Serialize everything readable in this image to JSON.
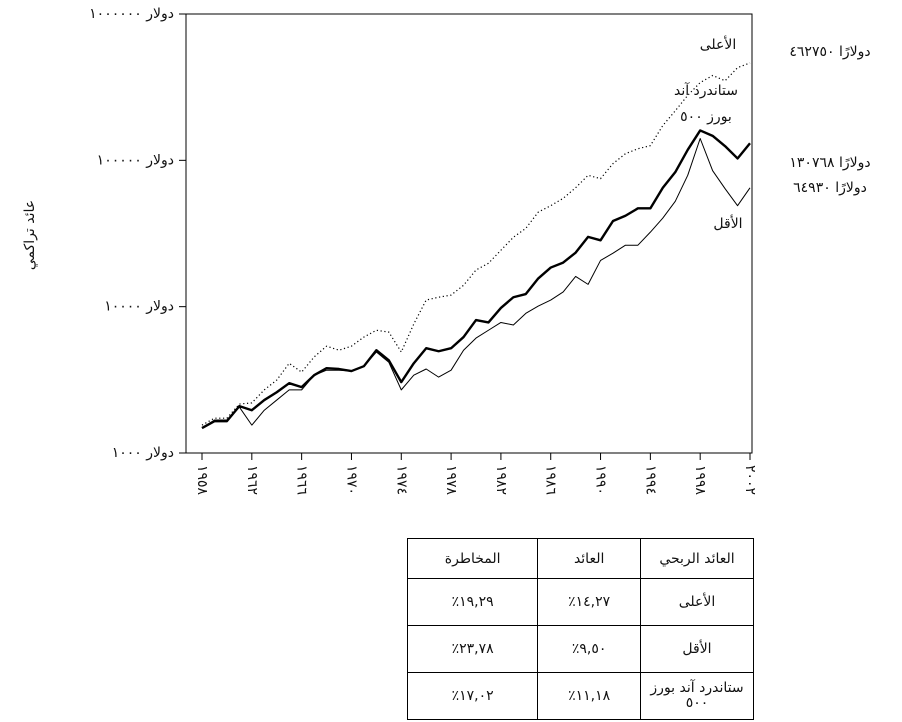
{
  "chart_data": {
    "type": "line",
    "y_label": "عائد تراكمي",
    "yscale": "log",
    "ylim": [
      1000,
      1000000
    ],
    "yticks": [
      {
        "value": 1000,
        "label": "دولار ١٠٠٠"
      },
      {
        "value": 10000,
        "label": "دولار ١٠٠٠٠"
      },
      {
        "value": 100000,
        "label": "دولار ١٠٠٠٠٠"
      },
      {
        "value": 1000000,
        "label": "دولار ١٠٠٠٠٠٠"
      }
    ],
    "xlim": [
      1958,
      2002
    ],
    "xticks": [
      {
        "value": 1958,
        "label": "١٩٥٨"
      },
      {
        "value": 1962,
        "label": "١٩٦٢"
      },
      {
        "value": 1966,
        "label": "١٩٦٦"
      },
      {
        "value": 1970,
        "label": "١٩٧٠"
      },
      {
        "value": 1974,
        "label": "١٩٧٤"
      },
      {
        "value": 1978,
        "label": "١٩٧٨"
      },
      {
        "value": 1982,
        "label": "١٩٨٢"
      },
      {
        "value": 1986,
        "label": "١٩٨٦"
      },
      {
        "value": 1990,
        "label": "١٩٩٠"
      },
      {
        "value": 1994,
        "label": "١٩٩٤"
      },
      {
        "value": 1998,
        "label": "١٩٩٨"
      },
      {
        "value": 2002,
        "label": "٢٠٠٢"
      }
    ],
    "x": [
      1958,
      1959,
      1960,
      1961,
      1962,
      1963,
      1964,
      1965,
      1966,
      1967,
      1968,
      1969,
      1970,
      1971,
      1972,
      1973,
      1974,
      1975,
      1976,
      1977,
      1978,
      1979,
      1980,
      1981,
      1982,
      1983,
      1984,
      1985,
      1986,
      1987,
      1988,
      1989,
      1990,
      1991,
      1992,
      1993,
      1994,
      1995,
      1996,
      1997,
      1998,
      1999,
      2000,
      2001,
      2002
    ],
    "series": [
      {
        "name": "الأعلى",
        "color": "#000000",
        "style": "dotted",
        "width": 1.2,
        "values": [
          1550,
          1730,
          1730,
          2160,
          2200,
          2700,
          3150,
          4100,
          3570,
          4530,
          5370,
          5040,
          5370,
          6200,
          6900,
          6700,
          4900,
          7600,
          11100,
          11600,
          12000,
          14000,
          17800,
          19800,
          24300,
          29800,
          34300,
          44300,
          49000,
          55000,
          65000,
          79000,
          75000,
          95000,
          111000,
          120000,
          126000,
          173000,
          218000,
          278000,
          340000,
          380000,
          350000,
          430000,
          462750
        ],
        "value_labels": [
          null,
          null,
          null,
          null,
          null,
          null,
          null,
          null,
          null,
          null,
          null,
          null,
          null,
          null,
          null,
          null,
          null,
          null,
          null,
          null,
          null,
          null,
          null,
          null,
          null,
          null,
          null,
          null,
          null,
          null,
          null,
          null,
          null,
          null,
          null,
          null,
          null,
          null,
          null,
          null,
          null,
          null,
          null,
          null,
          "دولارًا ٤٦٢٧٥٠"
        ]
      },
      {
        "name": "ستاندرد آند بورز ٥٠٠",
        "color": "#000000",
        "style": "solid",
        "width": 2.4,
        "values": [
          1480,
          1650,
          1650,
          2090,
          1960,
          2300,
          2600,
          3000,
          2820,
          3400,
          3800,
          3750,
          3630,
          3920,
          5040,
          4300,
          3050,
          4100,
          5200,
          4960,
          5200,
          6200,
          8100,
          7800,
          9800,
          11600,
          12200,
          15600,
          18500,
          20000,
          23400,
          30000,
          28400,
          38500,
          41800,
          47000,
          47000,
          65000,
          83000,
          118000,
          160000,
          147000,
          125000,
          103000,
          130768
        ],
        "value_labels": [
          null,
          null,
          null,
          null,
          null,
          null,
          null,
          null,
          null,
          null,
          null,
          null,
          null,
          null,
          null,
          null,
          null,
          null,
          null,
          null,
          null,
          null,
          null,
          null,
          null,
          null,
          null,
          null,
          null,
          null,
          null,
          null,
          null,
          null,
          null,
          null,
          null,
          null,
          null,
          null,
          null,
          null,
          null,
          null,
          "دولارًا ١٣٠٧٦٨"
        ]
      },
      {
        "name": "الأقل",
        "color": "#000000",
        "style": "solid",
        "width": 1,
        "values": [
          1480,
          1680,
          1680,
          2060,
          1550,
          1960,
          2300,
          2700,
          2700,
          3400,
          3680,
          3680,
          3630,
          3920,
          4900,
          4170,
          2700,
          3400,
          3750,
          3300,
          3680,
          5040,
          6100,
          6900,
          7800,
          7500,
          9000,
          10100,
          11100,
          12600,
          16100,
          14200,
          20700,
          23200,
          26300,
          26300,
          32300,
          40300,
          52500,
          79000,
          141000,
          85000,
          64000,
          49000,
          64930
        ],
        "value_labels": [
          null,
          null,
          null,
          null,
          null,
          null,
          null,
          null,
          null,
          null,
          null,
          null,
          null,
          null,
          null,
          null,
          null,
          null,
          null,
          null,
          null,
          null,
          null,
          null,
          null,
          null,
          null,
          null,
          null,
          null,
          null,
          null,
          null,
          null,
          null,
          null,
          null,
          null,
          null,
          null,
          null,
          null,
          null,
          null,
          "دولارًا ٦٤٩٣٠"
        ]
      }
    ]
  },
  "table": {
    "header": [
      "العائد الربحي",
      "العائد",
      "المخاطرة"
    ],
    "rows": [
      [
        "الأعلى",
        "٪١٤,٢٧",
        "٪١٩,٢٩"
      ],
      [
        "الأقل",
        "٪٩,٥٠",
        "٪٢٣,٧٨"
      ],
      [
        "ستاندرد آند بورز ٥٠٠",
        "٪١١,١٨",
        "٪١٧,٠٢"
      ]
    ]
  }
}
